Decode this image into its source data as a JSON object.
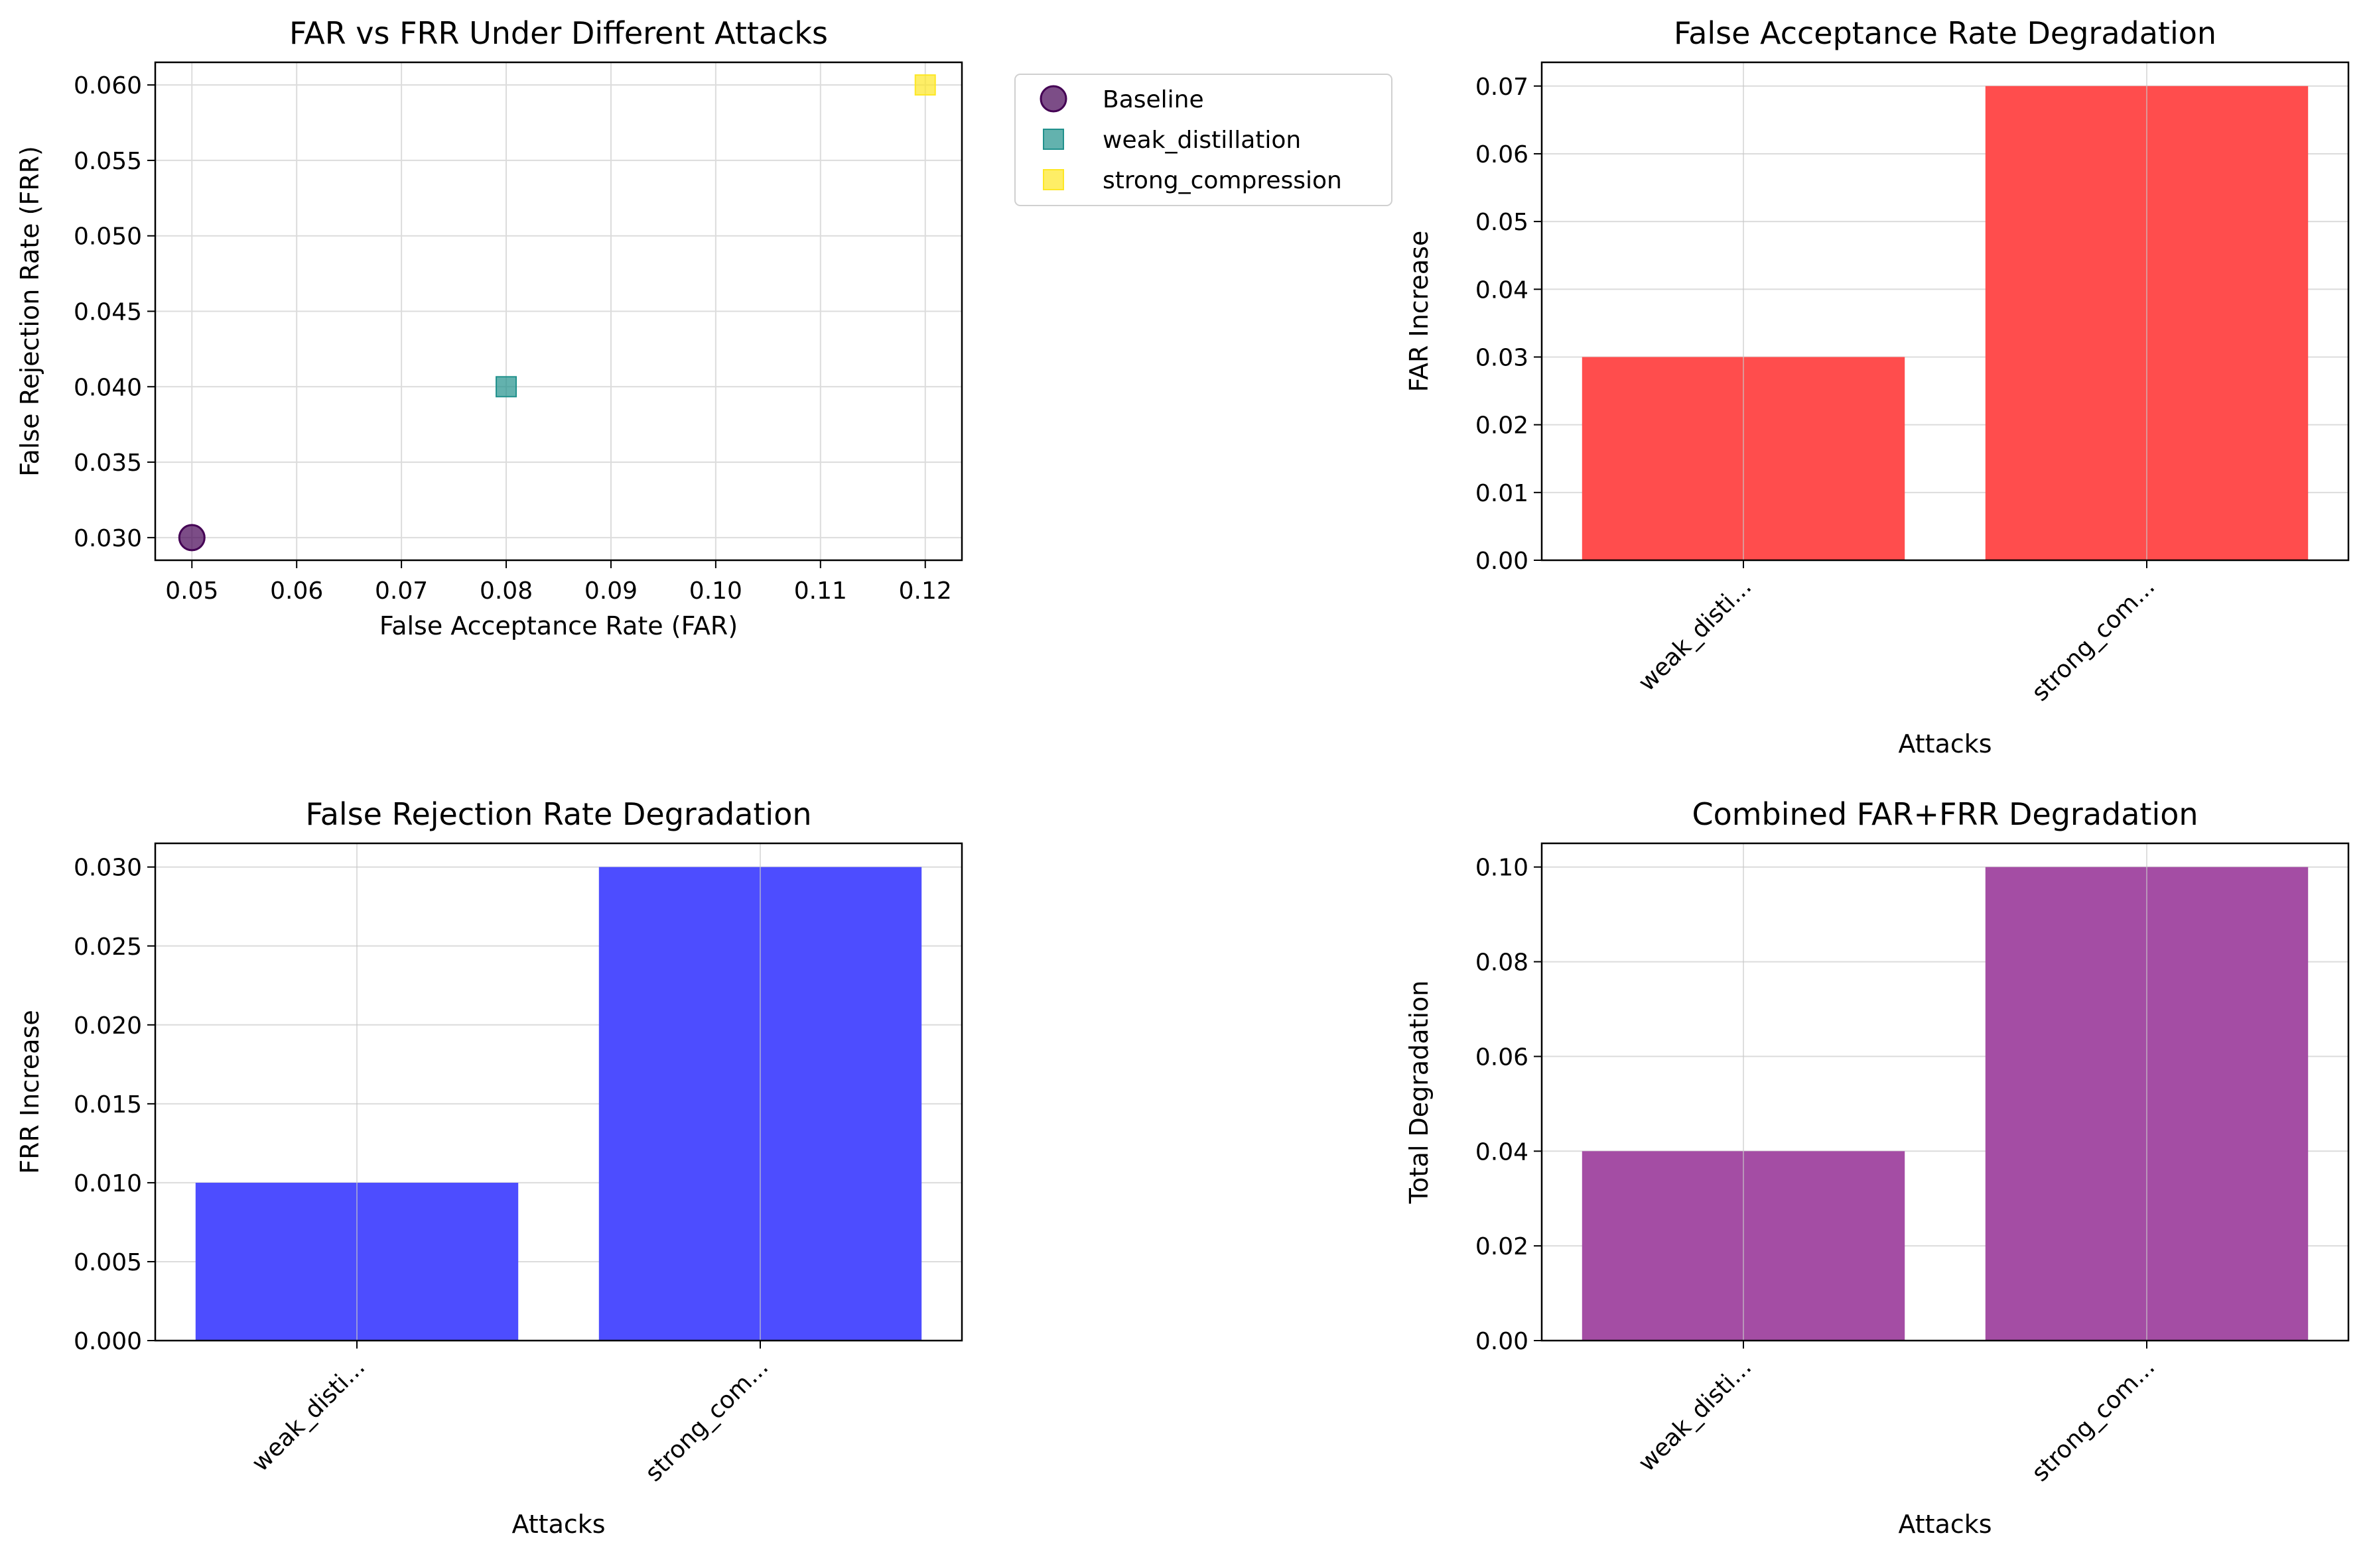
{
  "chart_data": [
    {
      "id": "scatter",
      "type": "scatter",
      "title": "FAR vs FRR Under Different Attacks",
      "xlabel": "False Acceptance Rate (FAR)",
      "ylabel": "False Rejection Rate (FRR)",
      "xlim": [
        0.0465,
        0.1235
      ],
      "ylim": [
        0.0285,
        0.0615
      ],
      "xticks": [
        "0.05",
        "0.06",
        "0.07",
        "0.08",
        "0.09",
        "0.10",
        "0.11",
        "0.12"
      ],
      "yticks": [
        "0.030",
        "0.035",
        "0.040",
        "0.045",
        "0.050",
        "0.055",
        "0.060"
      ],
      "grid": true,
      "legend_position": "outside-right",
      "series": [
        {
          "name": "Baseline",
          "marker": "circle",
          "color": "#440154",
          "x": [
            0.05
          ],
          "y": [
            0.03
          ]
        },
        {
          "name": "weak_distillation",
          "marker": "square",
          "color": "#21918c",
          "x": [
            0.08
          ],
          "y": [
            0.04
          ]
        },
        {
          "name": "strong_compression",
          "marker": "square",
          "color": "#fde725",
          "x": [
            0.12
          ],
          "y": [
            0.06
          ]
        }
      ]
    },
    {
      "id": "far",
      "type": "bar",
      "title": "False Acceptance Rate Degradation",
      "xlabel": "Attacks",
      "ylabel": "FAR Increase",
      "categories": [
        "weak_disti...",
        "strong_com..."
      ],
      "values": [
        0.03,
        0.07
      ],
      "ylim": [
        0,
        0.0735
      ],
      "yticks": [
        "0.00",
        "0.01",
        "0.02",
        "0.03",
        "0.04",
        "0.05",
        "0.06",
        "0.07"
      ],
      "color": "#ff4d4d",
      "grid": true
    },
    {
      "id": "frr",
      "type": "bar",
      "title": "False Rejection Rate Degradation",
      "xlabel": "Attacks",
      "ylabel": "FRR Increase",
      "categories": [
        "weak_disti...",
        "strong_com..."
      ],
      "values": [
        0.01,
        0.03
      ],
      "ylim": [
        0,
        0.0315
      ],
      "yticks": [
        "0.000",
        "0.005",
        "0.010",
        "0.015",
        "0.020",
        "0.025",
        "0.030"
      ],
      "color": "#4d4dff",
      "grid": true
    },
    {
      "id": "combined",
      "type": "bar",
      "title": "Combined FAR+FRR Degradation",
      "xlabel": "Attacks",
      "ylabel": "Total Degradation",
      "categories": [
        "weak_disti...",
        "strong_com..."
      ],
      "values": [
        0.04,
        0.1
      ],
      "ylim": [
        0,
        0.105
      ],
      "yticks": [
        "0.00",
        "0.02",
        "0.04",
        "0.06",
        "0.08",
        "0.10"
      ],
      "color": "#a44da4",
      "grid": true
    }
  ]
}
